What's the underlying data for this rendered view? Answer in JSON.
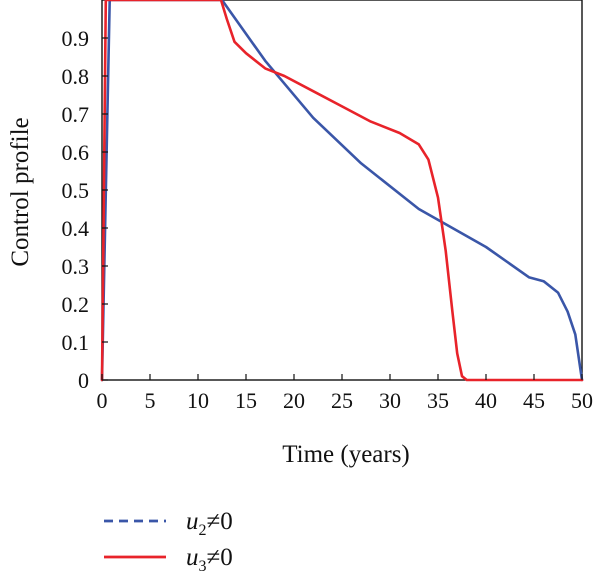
{
  "chart_data": {
    "type": "line",
    "title": "",
    "xlabel": "Time (years)",
    "ylabel": "Control profile",
    "xlim": [
      0,
      50
    ],
    "ylim": [
      0,
      1
    ],
    "xticks": [
      0,
      5,
      10,
      15,
      20,
      25,
      30,
      35,
      40,
      45,
      50
    ],
    "yticks": [
      0,
      0.1,
      0.2,
      0.3,
      0.4,
      0.5,
      0.6,
      0.7,
      0.8,
      0.9
    ],
    "ytick_labels": [
      "0",
      "0.1",
      "0.2",
      "0.3",
      "0.4",
      "0.5",
      "0.6",
      "0.7",
      "0.8",
      "0.9"
    ],
    "grid": false,
    "legend_position": "below",
    "series": [
      {
        "name": "u2≠0",
        "legend_base": "u",
        "legend_sub": "2",
        "legend_rest": "≠0",
        "color": "#3a56a8",
        "style": "dashed-legend",
        "x": [
          0,
          0.8,
          12.5,
          17,
          22,
          27,
          33,
          40,
          44.5,
          46,
          47.5,
          48.5,
          49.3,
          50
        ],
        "y": [
          0,
          1.0,
          1.0,
          0.84,
          0.69,
          0.57,
          0.45,
          0.35,
          0.27,
          0.26,
          0.23,
          0.18,
          0.12,
          0
        ]
      },
      {
        "name": "u3≠0",
        "legend_base": "u",
        "legend_sub": "3",
        "legend_rest": "≠0",
        "color": "#e8232a",
        "style": "solid",
        "x": [
          0,
          0.4,
          12.4,
          13,
          13.8,
          15,
          17,
          19,
          22,
          25,
          28,
          31,
          33,
          34,
          35,
          35.8,
          36.5,
          37,
          37.5,
          38,
          50
        ],
        "y": [
          0,
          1.0,
          1.0,
          0.95,
          0.89,
          0.86,
          0.82,
          0.8,
          0.76,
          0.72,
          0.68,
          0.65,
          0.62,
          0.58,
          0.48,
          0.34,
          0.18,
          0.07,
          0.01,
          0,
          0
        ]
      }
    ]
  }
}
